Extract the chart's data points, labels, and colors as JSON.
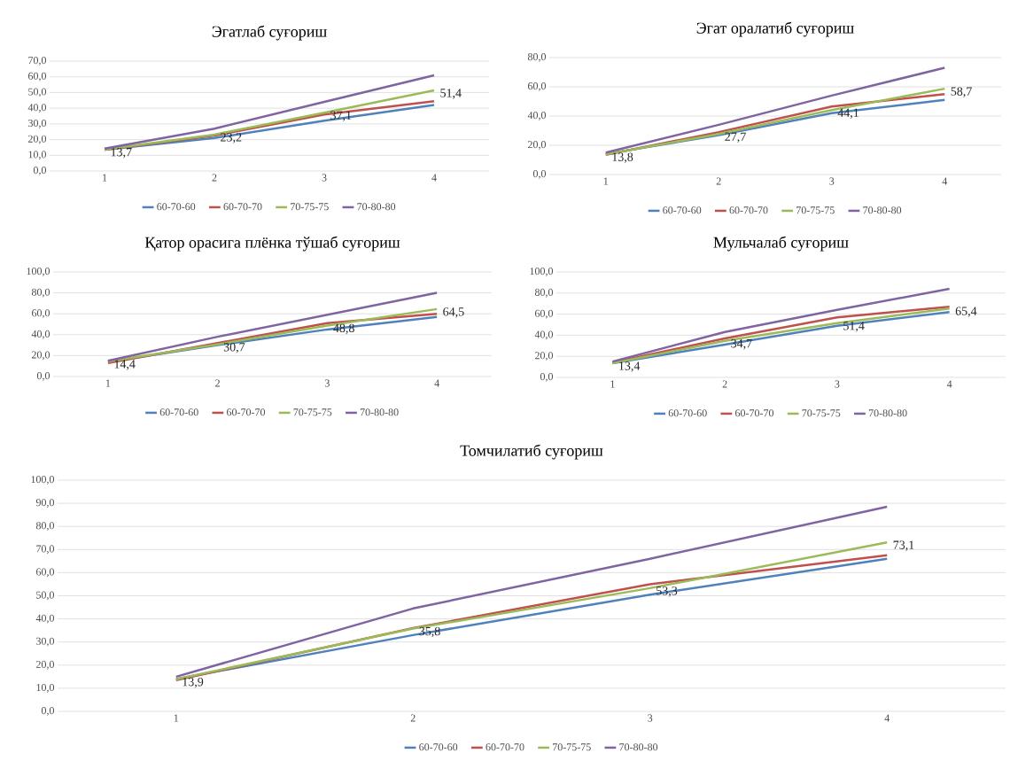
{
  "chart_data": [
    {
      "type": "line",
      "title": "Эгатлаб суғориш",
      "categories": [
        "1",
        "2",
        "3",
        "4"
      ],
      "ylim": [
        0,
        70
      ],
      "yticks": [
        {
          "value": 0,
          "label": "0,0"
        },
        {
          "value": 10,
          "label": "10,0"
        },
        {
          "value": 20,
          "label": "20,0"
        },
        {
          "value": 30,
          "label": "30,0"
        },
        {
          "value": 40,
          "label": "40,0"
        },
        {
          "value": 50,
          "label": "50,0"
        },
        {
          "value": 60,
          "label": "60,0"
        },
        {
          "value": 70,
          "label": "70,0"
        }
      ],
      "grid": "y",
      "legend": "bottom",
      "series": [
        {
          "name": "60-70-60",
          "color": "#4f81bd",
          "values": [
            13.5,
            21,
            32,
            42
          ]
        },
        {
          "name": "60-70-70",
          "color": "#c0504d",
          "values": [
            13.5,
            22.5,
            36,
            44.5
          ]
        },
        {
          "name": "70-75-75",
          "color": "#9bbb59",
          "values": [
            13.7,
            23.2,
            37.1,
            51.4
          ],
          "value_labels": [
            "13,7",
            "23,2",
            "37,1",
            "51,4"
          ]
        },
        {
          "name": "70-80-80",
          "color": "#8064a2",
          "values": [
            14.3,
            27,
            44,
            61
          ]
        }
      ]
    },
    {
      "type": "line",
      "title": "Эгат оралатиб суғориш",
      "categories": [
        "1",
        "2",
        "3",
        "4"
      ],
      "ylim": [
        0,
        80
      ],
      "yticks": [
        {
          "value": 0,
          "label": "0,0"
        },
        {
          "value": 20,
          "label": "20,0"
        },
        {
          "value": 40,
          "label": "40,0"
        },
        {
          "value": 60,
          "label": "60,0"
        },
        {
          "value": 80,
          "label": "80,0"
        }
      ],
      "grid": "y",
      "legend": "bottom",
      "series": [
        {
          "name": "60-70-60",
          "color": "#4f81bd",
          "values": [
            14,
            27,
            42,
            51
          ]
        },
        {
          "name": "60-70-70",
          "color": "#c0504d",
          "values": [
            13.5,
            29,
            46.5,
            55
          ]
        },
        {
          "name": "70-75-75",
          "color": "#9bbb59",
          "values": [
            13.8,
            27.7,
            44.1,
            58.7
          ],
          "value_labels": [
            "13,8",
            "27,7",
            "44,1",
            "58,7"
          ]
        },
        {
          "name": "70-80-80",
          "color": "#8064a2",
          "values": [
            15,
            34,
            54,
            73
          ]
        }
      ]
    },
    {
      "type": "line",
      "title": "Қатор орасига плёнка тўшаб суғориш",
      "categories": [
        "1",
        "2",
        "3",
        "4"
      ],
      "ylim": [
        0,
        100
      ],
      "yticks": [
        {
          "value": 0,
          "label": "0,0"
        },
        {
          "value": 20,
          "label": "20,0"
        },
        {
          "value": 40,
          "label": "40,0"
        },
        {
          "value": 60,
          "label": "60,0"
        },
        {
          "value": 80,
          "label": "80,0"
        },
        {
          "value": 100,
          "label": "100,0"
        }
      ],
      "grid": "y",
      "legend": "bottom",
      "series": [
        {
          "name": "60-70-60",
          "color": "#4f81bd",
          "values": [
            14,
            30,
            45,
            57
          ]
        },
        {
          "name": "60-70-70",
          "color": "#c0504d",
          "values": [
            13,
            32,
            51,
            60
          ]
        },
        {
          "name": "70-75-75",
          "color": "#9bbb59",
          "values": [
            14.4,
            30.7,
            48.8,
            64.5
          ],
          "value_labels": [
            "14,4",
            "30,7",
            "48,8",
            "64,5"
          ]
        },
        {
          "name": "70-80-80",
          "color": "#8064a2",
          "values": [
            15,
            38,
            59,
            80
          ]
        }
      ]
    },
    {
      "type": "line",
      "title": "Мульчалаб суғориш",
      "categories": [
        "1",
        "2",
        "3",
        "4"
      ],
      "ylim": [
        0,
        100
      ],
      "yticks": [
        {
          "value": 0,
          "label": "0,0"
        },
        {
          "value": 20,
          "label": "20,0"
        },
        {
          "value": 40,
          "label": "40,0"
        },
        {
          "value": 60,
          "label": "60,0"
        },
        {
          "value": 80,
          "label": "80,0"
        },
        {
          "value": 100,
          "label": "100,0"
        }
      ],
      "grid": "y",
      "legend": "bottom",
      "series": [
        {
          "name": "60-70-60",
          "color": "#4f81bd",
          "values": [
            13.5,
            31,
            49,
            62
          ]
        },
        {
          "name": "60-70-70",
          "color": "#c0504d",
          "values": [
            14,
            37,
            57,
            67
          ]
        },
        {
          "name": "70-75-75",
          "color": "#9bbb59",
          "values": [
            13.4,
            34.7,
            51.4,
            65.4
          ],
          "value_labels": [
            "13,4",
            "34,7",
            "51,4",
            "65,4"
          ]
        },
        {
          "name": "70-80-80",
          "color": "#8064a2",
          "values": [
            15,
            43,
            64,
            84
          ]
        }
      ]
    },
    {
      "type": "line",
      "title": "Томчилатиб суғориш",
      "categories": [
        "1",
        "2",
        "3",
        "4"
      ],
      "ylim": [
        0,
        100
      ],
      "yticks": [
        {
          "value": 0,
          "label": "0,0"
        },
        {
          "value": 10,
          "label": "10,0"
        },
        {
          "value": 20,
          "label": "20,0"
        },
        {
          "value": 30,
          "label": "30,0"
        },
        {
          "value": 40,
          "label": "40,0"
        },
        {
          "value": 50,
          "label": "50,0"
        },
        {
          "value": 60,
          "label": "60,0"
        },
        {
          "value": 70,
          "label": "70,0"
        },
        {
          "value": 80,
          "label": "80,0"
        },
        {
          "value": 90,
          "label": "90,0"
        },
        {
          "value": 100,
          "label": "100,0"
        }
      ],
      "grid": "y",
      "legend": "bottom",
      "series": [
        {
          "name": "60-70-60",
          "color": "#4f81bd",
          "values": [
            14,
            33,
            50.5,
            66
          ]
        },
        {
          "name": "60-70-70",
          "color": "#c0504d",
          "values": [
            13.5,
            36,
            55,
            67.5
          ]
        },
        {
          "name": "70-75-75",
          "color": "#9bbb59",
          "values": [
            13.9,
            35.8,
            53.3,
            73.1
          ],
          "value_labels": [
            "13,9",
            "35,8",
            "53,3",
            "73,1"
          ]
        },
        {
          "name": "70-80-80",
          "color": "#8064a2",
          "values": [
            15,
            44.5,
            66,
            88.5
          ]
        }
      ]
    }
  ]
}
